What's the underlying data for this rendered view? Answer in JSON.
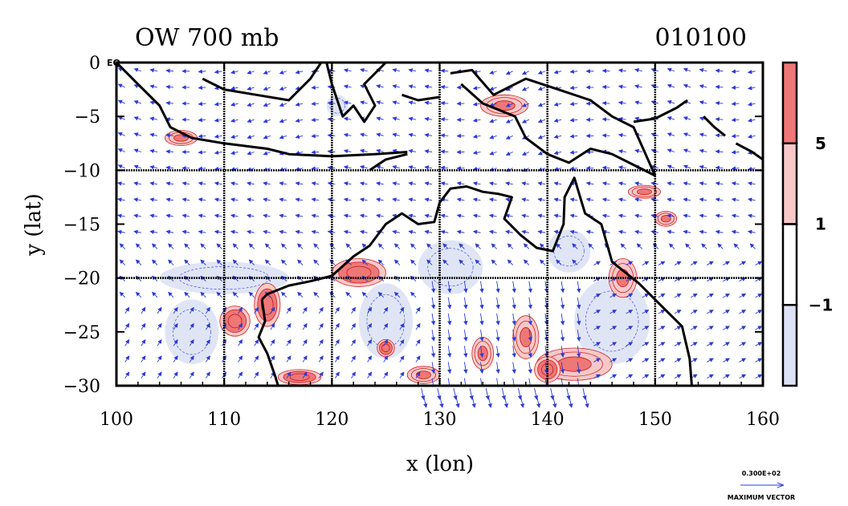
{
  "title_left": "OW 700 mb",
  "title_right": "010100",
  "eq_label": "EQ",
  "axes": {
    "xlabel": "x (lon)",
    "ylabel": "y (lat)",
    "xlim": [
      100,
      160
    ],
    "ylim": [
      -30,
      0
    ],
    "xticks": [
      100,
      110,
      120,
      130,
      140,
      150,
      160
    ],
    "yticks": [
      0,
      -5,
      -10,
      -15,
      -20,
      -25,
      -30
    ],
    "xtick_labels": [
      "100",
      "110",
      "120",
      "130",
      "140",
      "150",
      "160"
    ],
    "ytick_labels": [
      "0",
      "−5",
      "−10",
      "−15",
      "−20",
      "−25",
      "−30"
    ],
    "grid_lon": [
      110,
      120,
      130,
      140,
      150
    ],
    "grid_lat": [
      -10,
      -20
    ]
  },
  "colorbar": {
    "levels": [
      {
        "label": "5",
        "color": "#ee7777"
      },
      {
        "label": "1",
        "color": "#f8c8c8"
      },
      {
        "label": "−1",
        "color": "#ffffff"
      },
      {
        "label": "",
        "color": "#dde2f4"
      }
    ],
    "tick_labels": [
      "5",
      "1",
      "−1"
    ]
  },
  "vector_key": {
    "value": "0.300E+02",
    "label": "MAXIMUM VECTOR"
  },
  "colors": {
    "vector": "#2b3bd6",
    "positive": "#ee7777",
    "positive_light": "#f8c8c8",
    "negative": "#dde2f4",
    "coast": "#000000"
  },
  "coast_lines": [
    {
      "name": "Sumatra/Java",
      "lonlat": [
        [
          100,
          0
        ],
        [
          102,
          -2
        ],
        [
          104,
          -4
        ],
        [
          105,
          -6
        ],
        [
          107,
          -7
        ],
        [
          110,
          -7.5
        ],
        [
          114,
          -8
        ],
        [
          116,
          -8.5
        ],
        [
          120,
          -8.7
        ],
        [
          124,
          -8.5
        ],
        [
          127,
          -8.3
        ]
      ]
    },
    {
      "name": "Borneo south",
      "lonlat": [
        [
          108,
          -1.5
        ],
        [
          110,
          -2.5
        ],
        [
          113,
          -3
        ],
        [
          116,
          -3.5
        ],
        [
          118,
          -1.5
        ],
        [
          119,
          0
        ]
      ]
    },
    {
      "name": "Sulawesi",
      "lonlat": [
        [
          119.5,
          0
        ],
        [
          120,
          -2
        ],
        [
          121,
          -5
        ],
        [
          122,
          -4
        ],
        [
          123,
          -5.5
        ],
        [
          124,
          -4
        ],
        [
          123,
          -2
        ],
        [
          125,
          0
        ]
      ]
    },
    {
      "name": "Moluccas",
      "lonlat": [
        [
          126.5,
          -3
        ],
        [
          128,
          -3.5
        ],
        [
          130,
          -3.2
        ]
      ]
    },
    {
      "name": "New Guinea north",
      "lonlat": [
        [
          131,
          -1
        ],
        [
          133,
          -0.7
        ],
        [
          135,
          -3
        ],
        [
          138,
          -1.5
        ],
        [
          141,
          -2.5
        ],
        [
          144,
          -3.5
        ],
        [
          146,
          -5
        ],
        [
          148,
          -6
        ],
        [
          150,
          -10.5
        ]
      ]
    },
    {
      "name": "New Guinea south",
      "lonlat": [
        [
          132,
          -2
        ],
        [
          134,
          -3.8
        ],
        [
          137,
          -5
        ],
        [
          138,
          -7
        ],
        [
          140,
          -8.5
        ],
        [
          142,
          -9.3
        ],
        [
          144,
          -8
        ],
        [
          146,
          -8.5
        ],
        [
          148,
          -9.5
        ],
        [
          150,
          -10.5
        ]
      ]
    },
    {
      "name": "Timor",
      "lonlat": [
        [
          123.5,
          -10
        ],
        [
          125,
          -9
        ],
        [
          127,
          -8.5
        ]
      ]
    },
    {
      "name": "New Britain",
      "lonlat": [
        [
          148,
          -5.5
        ],
        [
          150,
          -5.2
        ],
        [
          152,
          -4.2
        ],
        [
          153,
          -3.5
        ]
      ]
    },
    {
      "name": "Bougainville",
      "lonlat": [
        [
          154.5,
          -5
        ],
        [
          155.5,
          -6
        ],
        [
          156.5,
          -6.8
        ]
      ]
    },
    {
      "name": "Solomons",
      "lonlat": [
        [
          157.5,
          -7.5
        ],
        [
          159,
          -8.3
        ],
        [
          160,
          -9
        ]
      ]
    },
    {
      "name": "Australia",
      "lonlat": [
        [
          113.5,
          -22
        ],
        [
          114,
          -21.5
        ],
        [
          116,
          -20.7
        ],
        [
          118,
          -20.3
        ],
        [
          120,
          -19.8
        ],
        [
          122,
          -18
        ],
        [
          123.5,
          -17
        ],
        [
          125,
          -15
        ],
        [
          126.5,
          -14
        ],
        [
          128,
          -15
        ],
        [
          129.5,
          -14.8
        ],
        [
          130,
          -13
        ],
        [
          131,
          -11.7
        ],
        [
          132.5,
          -11.5
        ],
        [
          134,
          -12
        ],
        [
          135.5,
          -12.2
        ],
        [
          136.7,
          -12.5
        ],
        [
          136,
          -14.5
        ],
        [
          137.5,
          -16
        ],
        [
          139,
          -17.2
        ],
        [
          140.5,
          -17.5
        ],
        [
          141.5,
          -15
        ],
        [
          141.6,
          -12.5
        ],
        [
          142.5,
          -10.7
        ],
        [
          143.5,
          -14
        ],
        [
          145,
          -15
        ],
        [
          146,
          -18.5
        ],
        [
          148.5,
          -20.5
        ],
        [
          150.5,
          -22.5
        ],
        [
          152.5,
          -24.5
        ],
        [
          153.2,
          -27.5
        ],
        [
          153.4,
          -30
        ]
      ]
    },
    {
      "name": "Australia west",
      "lonlat": [
        [
          113.5,
          -22
        ],
        [
          113.8,
          -24
        ],
        [
          113.2,
          -25.5
        ],
        [
          114,
          -27
        ],
        [
          114.7,
          -29
        ],
        [
          115,
          -30
        ]
      ]
    }
  ],
  "positive_blobs": [
    {
      "lon": 122.5,
      "lat": -19.5,
      "rx": 2.5,
      "ry": 1.3,
      "strong": true
    },
    {
      "lon": 111.0,
      "lat": -24.0,
      "rx": 1.4,
      "ry": 1.4,
      "strong": true
    },
    {
      "lon": 114.0,
      "lat": -22.5,
      "rx": 1.2,
      "ry": 2.0,
      "strong": true
    },
    {
      "lon": 117.0,
      "lat": -29.2,
      "rx": 2.0,
      "ry": 0.7,
      "strong": true
    },
    {
      "lon": 142.5,
      "lat": -28.0,
      "rx": 3.5,
      "ry": 1.5,
      "strong": false
    },
    {
      "lon": 140.0,
      "lat": -28.5,
      "rx": 1.2,
      "ry": 1.2,
      "strong": true
    },
    {
      "lon": 125.0,
      "lat": -26.5,
      "rx": 0.8,
      "ry": 0.8,
      "strong": true
    },
    {
      "lon": 134.0,
      "lat": -27.0,
      "rx": 1.0,
      "ry": 1.5,
      "strong": false
    },
    {
      "lon": 138.0,
      "lat": -25.5,
      "rx": 1.2,
      "ry": 2.0,
      "strong": false
    },
    {
      "lon": 106.0,
      "lat": -7.0,
      "rx": 1.5,
      "ry": 0.7,
      "strong": false
    },
    {
      "lon": 147.0,
      "lat": -20.0,
      "rx": 1.3,
      "ry": 1.8,
      "strong": false
    },
    {
      "lon": 149.0,
      "lat": -12.0,
      "rx": 1.5,
      "ry": 0.6,
      "strong": false
    },
    {
      "lon": 151.0,
      "lat": -14.5,
      "rx": 1.0,
      "ry": 0.7,
      "strong": false
    },
    {
      "lon": 136.0,
      "lat": -4.0,
      "rx": 2.2,
      "ry": 1.0,
      "strong": false
    },
    {
      "lon": 128.5,
      "lat": -29.0,
      "rx": 1.5,
      "ry": 0.8,
      "strong": false
    }
  ],
  "negative_blobs": [
    {
      "lon": 110.0,
      "lat": -20.0,
      "rx": 6.0,
      "ry": 1.5
    },
    {
      "lon": 107.0,
      "lat": -25.0,
      "rx": 2.5,
      "ry": 3.0
    },
    {
      "lon": 125.0,
      "lat": -24.0,
      "rx": 2.5,
      "ry": 3.5
    },
    {
      "lon": 146.0,
      "lat": -24.0,
      "rx": 3.5,
      "ry": 4.0
    },
    {
      "lon": 131.0,
      "lat": -19.0,
      "rx": 3.0,
      "ry": 2.5
    },
    {
      "lon": 142.0,
      "lat": -17.5,
      "rx": 2.0,
      "ry": 2.0
    },
    {
      "lon": 120.5,
      "lat": -4.0,
      "rx": 1.0,
      "ry": 1.0
    }
  ]
}
